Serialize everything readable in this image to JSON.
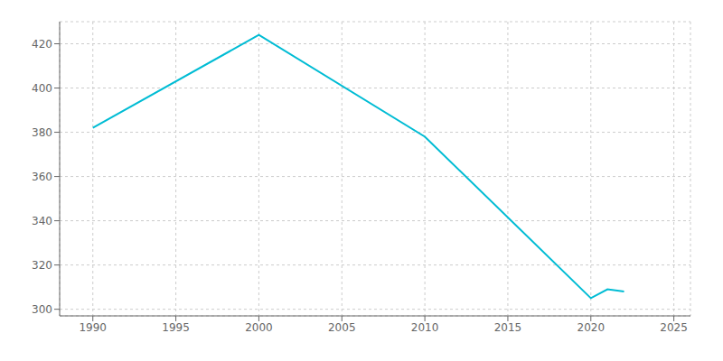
{
  "chart_data": {
    "type": "line",
    "x": [
      1990,
      2000,
      2010,
      2020,
      2021,
      2022
    ],
    "values": [
      382,
      424,
      378,
      305,
      309,
      308
    ],
    "color": "#00bcd4",
    "xlim": [
      1988,
      2026
    ],
    "ylim": [
      297,
      430
    ],
    "xticks": [
      1990,
      1995,
      2000,
      2005,
      2010,
      2015,
      2020,
      2025
    ],
    "yticks": [
      300,
      320,
      340,
      360,
      380,
      400,
      420
    ],
    "grid": true
  }
}
